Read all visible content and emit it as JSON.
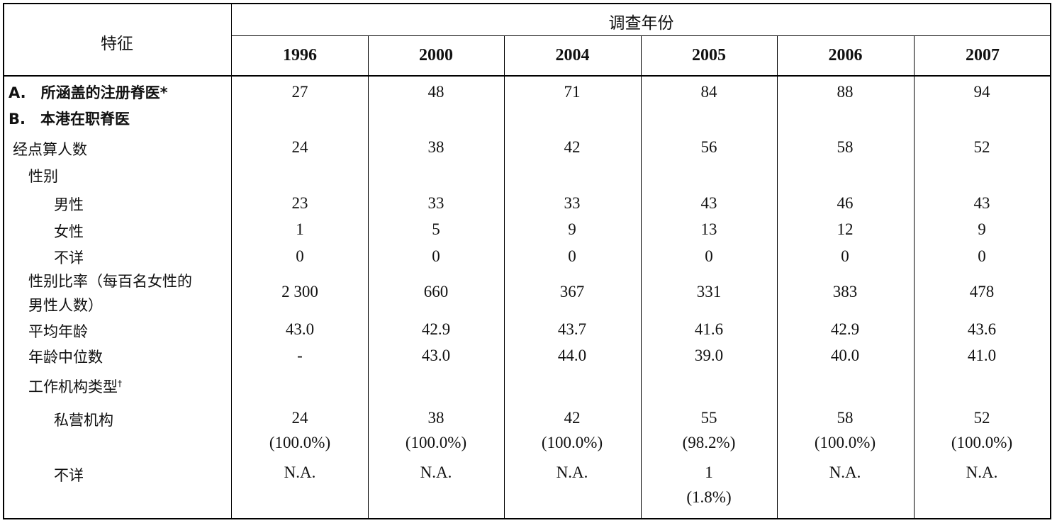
{
  "header": {
    "feature_label": "特征",
    "survey_year_label": "调查年份",
    "years": [
      "1996",
      "2000",
      "2004",
      "2005",
      "2006",
      "2007"
    ]
  },
  "rows": [
    {
      "label": "A.　所涵盖的注册脊医*",
      "values": [
        "27",
        "48",
        "71",
        "84",
        "88",
        "94"
      ]
    },
    {
      "label": "B.　本港在职脊医",
      "values": [
        "",
        "",
        "",
        "",
        "",
        ""
      ]
    },
    {
      "label": "经点算人数",
      "values": [
        "24",
        "38",
        "42",
        "56",
        "58",
        "52"
      ]
    },
    {
      "label": "性别",
      "values": [
        "",
        "",
        "",
        "",
        "",
        ""
      ]
    },
    {
      "label": "男性",
      "values": [
        "23",
        "33",
        "33",
        "43",
        "46",
        "43"
      ]
    },
    {
      "label": "女性",
      "values": [
        "1",
        "5",
        "9",
        "13",
        "12",
        "9"
      ]
    },
    {
      "label": "不详",
      "values": [
        "0",
        "0",
        "0",
        "0",
        "0",
        "0"
      ]
    },
    {
      "label_line1": "性别比率（每百名女性的",
      "label_line2": "男性人数）",
      "values": [
        "2 300",
        "660",
        "367",
        "331",
        "383",
        "478"
      ]
    },
    {
      "label": "平均年龄",
      "values": [
        "43.0",
        "42.9",
        "43.7",
        "41.6",
        "42.9",
        "43.6"
      ]
    },
    {
      "label": "年龄中位数",
      "values": [
        "-",
        "43.0",
        "44.0",
        "39.0",
        "40.0",
        "41.0"
      ]
    },
    {
      "label": "工作机构类型",
      "label_sup": "†",
      "values": [
        "",
        "",
        "",
        "",
        "",
        ""
      ]
    },
    {
      "label": "私营机构",
      "values": [
        "24",
        "38",
        "42",
        "55",
        "58",
        "52"
      ],
      "pct": [
        "(100.0%)",
        "(100.0%)",
        "(100.0%)",
        "(98.2%)",
        "(100.0%)",
        "(100.0%)"
      ]
    },
    {
      "label": "不详",
      "values": [
        "N.A.",
        "N.A.",
        "N.A.",
        "1",
        "N.A.",
        "N.A."
      ],
      "pct": [
        "",
        "",
        "",
        "(1.8%)",
        "",
        ""
      ]
    }
  ]
}
